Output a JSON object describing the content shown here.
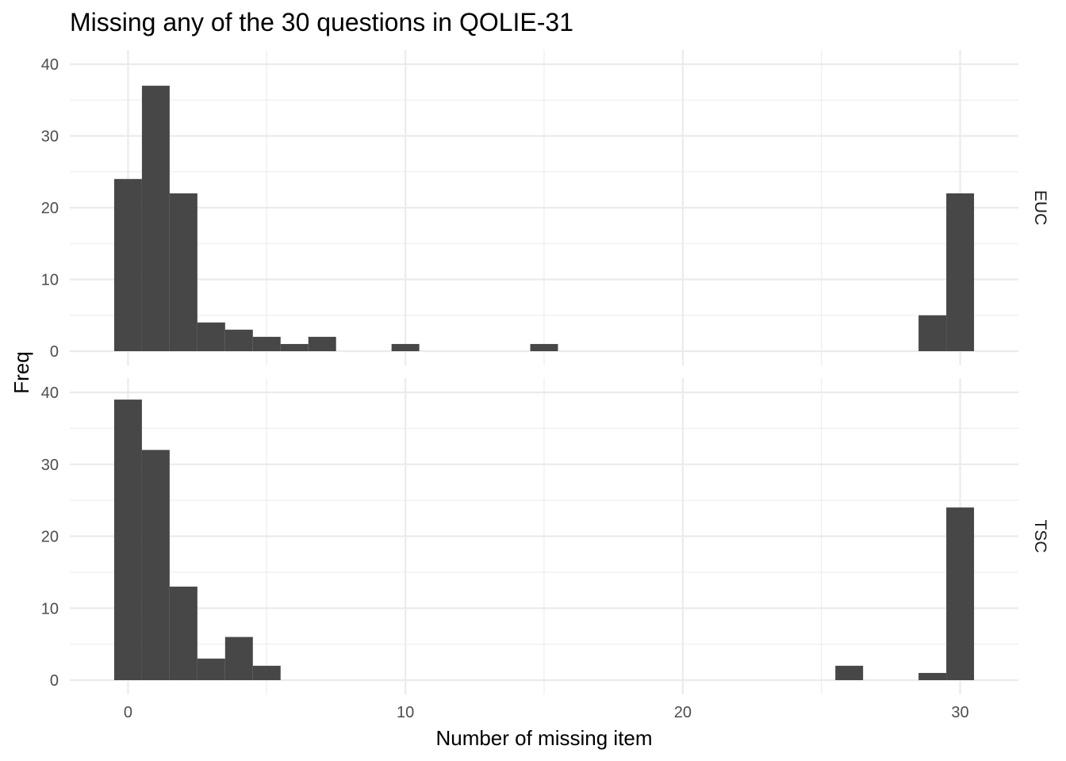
{
  "chart_data": {
    "type": "bar",
    "title": "Missing any of the 30 questions in QOLIE-31",
    "xlabel": "Number of missing item",
    "ylabel": "Freq",
    "xlim": [
      -2.1,
      32.1
    ],
    "x_ticks": [
      0,
      10,
      20,
      30
    ],
    "bin_width": 1,
    "grid": true,
    "facets": [
      {
        "name": "EUC",
        "ylim": [
          0,
          40
        ],
        "y_ticks": [
          0,
          10,
          20,
          30,
          40
        ],
        "bins": [
          {
            "x": 0,
            "count": 24
          },
          {
            "x": 1,
            "count": 37
          },
          {
            "x": 2,
            "count": 22
          },
          {
            "x": 3,
            "count": 4
          },
          {
            "x": 4,
            "count": 3
          },
          {
            "x": 5,
            "count": 2
          },
          {
            "x": 6,
            "count": 1
          },
          {
            "x": 7,
            "count": 2
          },
          {
            "x": 10,
            "count": 1
          },
          {
            "x": 15,
            "count": 1
          },
          {
            "x": 29,
            "count": 5
          },
          {
            "x": 30,
            "count": 22
          }
        ]
      },
      {
        "name": "TSC",
        "ylim": [
          0,
          40
        ],
        "y_ticks": [
          0,
          10,
          20,
          30,
          40
        ],
        "bins": [
          {
            "x": 0,
            "count": 39
          },
          {
            "x": 1,
            "count": 32
          },
          {
            "x": 2,
            "count": 13
          },
          {
            "x": 3,
            "count": 3
          },
          {
            "x": 4,
            "count": 6
          },
          {
            "x": 5,
            "count": 2
          },
          {
            "x": 26,
            "count": 2
          },
          {
            "x": 29,
            "count": 1
          },
          {
            "x": 30,
            "count": 24
          }
        ]
      }
    ]
  }
}
